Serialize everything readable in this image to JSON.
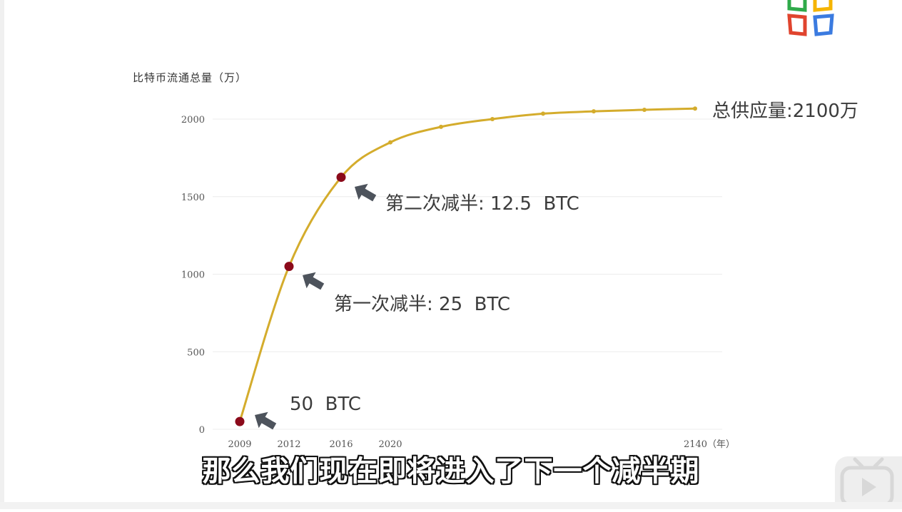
{
  "chart_data": {
    "type": "line",
    "ylabel": "比特币流通总量（万）",
    "x_tick_labels": [
      "2009",
      "2012",
      "2016",
      "2020",
      "2140（年）"
    ],
    "y_ticks": [
      0,
      500,
      1000,
      1500,
      2000
    ],
    "ylim": [
      0,
      2100
    ],
    "series": [
      {
        "values": [
          50,
          1050,
          1625,
          1850,
          1950,
          2000,
          2035,
          2050,
          2060,
          2068
        ]
      }
    ],
    "highlighted_points": [
      0,
      1,
      2
    ],
    "annotations": [
      "50  BTC",
      "第一次减半: 25  BTC",
      "第二次减半: 12.5  BTC",
      "总供应量:2100万"
    ],
    "line_color": "#d4ac2c",
    "highlight_color": "#8b0a1a",
    "grid": true
  },
  "subtitle": "那么我们现在即将进入了下一个减半期"
}
